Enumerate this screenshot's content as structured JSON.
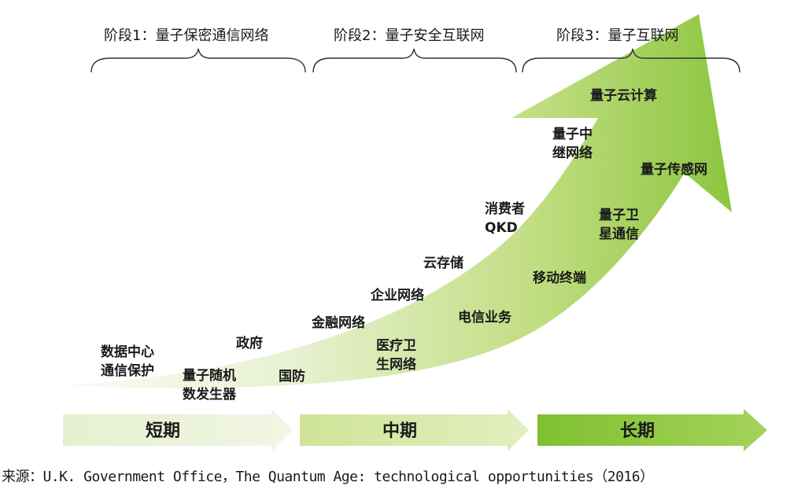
{
  "stages": [
    {
      "label": "阶段1：量子保密通信网络"
    },
    {
      "label": "阶段2：量子安全互联网"
    },
    {
      "label": "阶段3：量子互联网"
    }
  ],
  "applications": {
    "dc_protect": [
      "数据中心",
      "通信保护"
    ],
    "gov": [
      "政府"
    ],
    "qrng": [
      "量子随机",
      "数发生器"
    ],
    "defense": [
      "国防"
    ],
    "finance": [
      "金融网络"
    ],
    "medical": [
      "医疗卫",
      "生网络"
    ],
    "enterprise": [
      "企业网络"
    ],
    "telecom": [
      "电信业务"
    ],
    "cloud_storage": [
      "云存储"
    ],
    "consumer_qkd": [
      "消费者",
      "QKD"
    ],
    "mobile": [
      "移动终端"
    ],
    "satellite": [
      "量子卫",
      "星通信"
    ],
    "repeater": [
      "量子中",
      "继网络"
    ],
    "cloud_compute": [
      "量子云计算"
    ],
    "sensing": [
      "量子传感网"
    ]
  },
  "timeline": [
    {
      "label": "短期",
      "color": "#eef5df"
    },
    {
      "label": "中期",
      "color": "#d6e9a6"
    },
    {
      "label": "长期",
      "color": "#8cc63f"
    }
  ],
  "source": "来源：U.K. Government Office，The Quantum Age: technological opportunities（2016）",
  "colors": {
    "arrow_start": "#f4f8ea",
    "arrow_end": "#8cc63f"
  }
}
